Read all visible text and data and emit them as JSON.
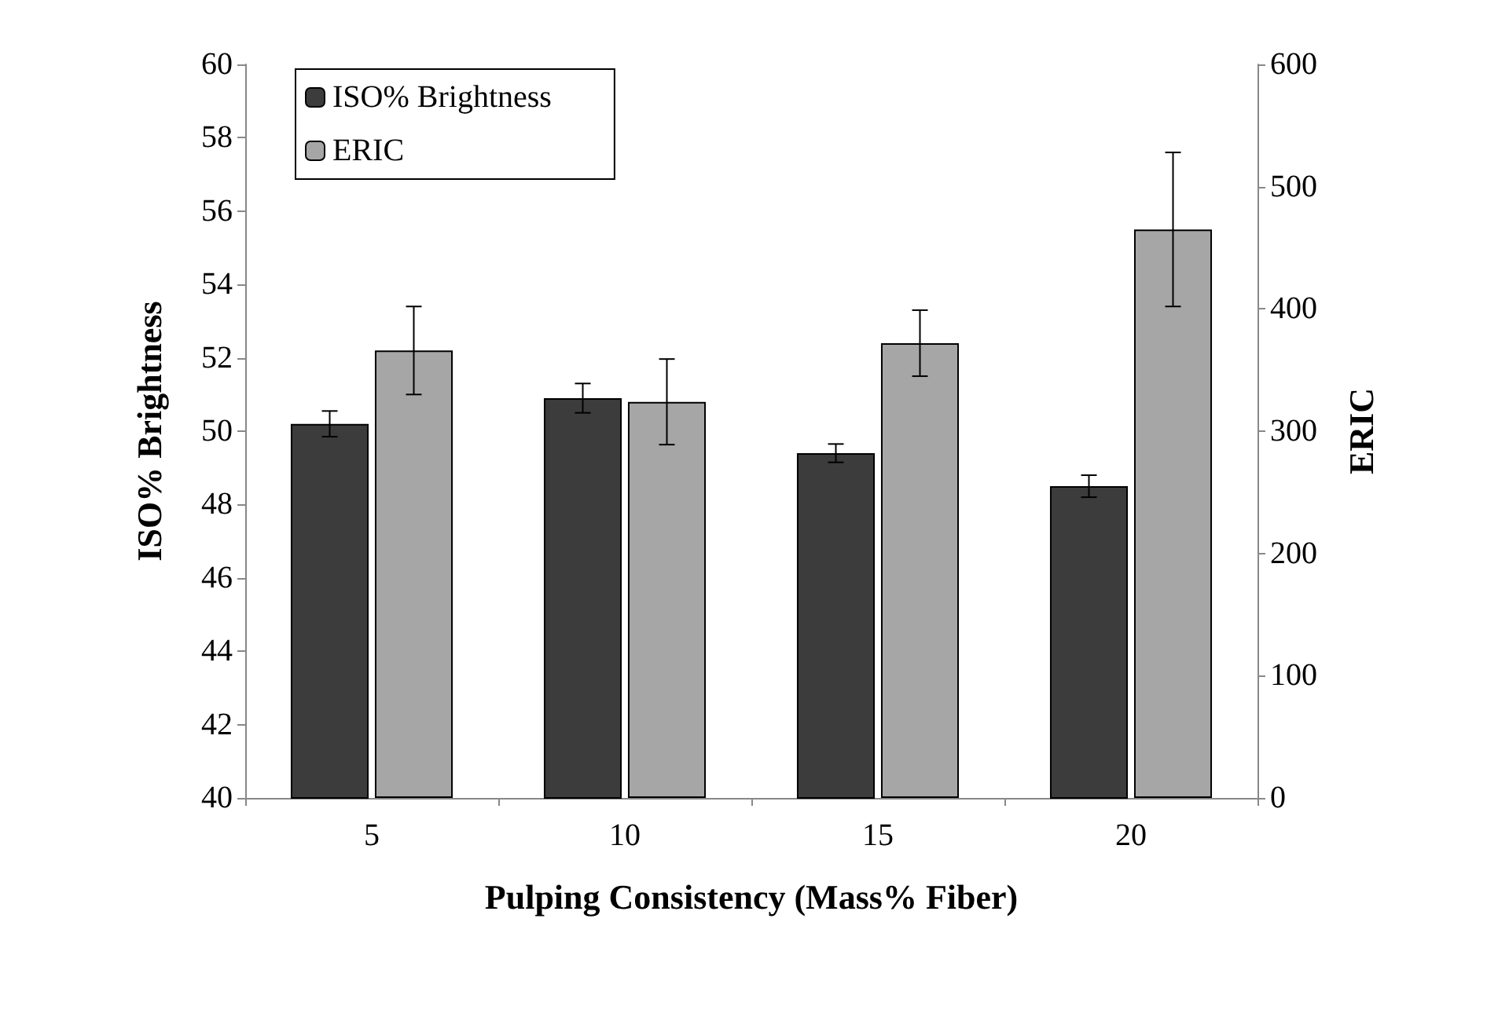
{
  "chart_data": {
    "type": "bar",
    "xlabel": "Pulping Consistency (Mass% Fiber)",
    "ylabel": "ISO% Brightness",
    "y2label": "ERIC",
    "categories": [
      "5",
      "10",
      "15",
      "20"
    ],
    "series": [
      {
        "name": "ISO% Brightness",
        "color": "#3c3c3c",
        "values": [
          50.2,
          50.9,
          49.4,
          48.5
        ],
        "errors": [
          0.35,
          0.4,
          0.25,
          0.3
        ]
      },
      {
        "name": "ERIC",
        "color": "#a6a6a6",
        "axis": "y2",
        "values": [
          366,
          324,
          372,
          465
        ],
        "errors": [
          36,
          35,
          27,
          63
        ]
      }
    ],
    "ylim": [
      40,
      60
    ],
    "yticks": [
      40,
      42,
      44,
      46,
      48,
      50,
      52,
      54,
      56,
      58,
      60
    ],
    "y2lim": [
      0,
      600
    ],
    "y2ticks": [
      0,
      100,
      200,
      300,
      400,
      500,
      600
    ],
    "legend": "top left",
    "grid": false
  }
}
